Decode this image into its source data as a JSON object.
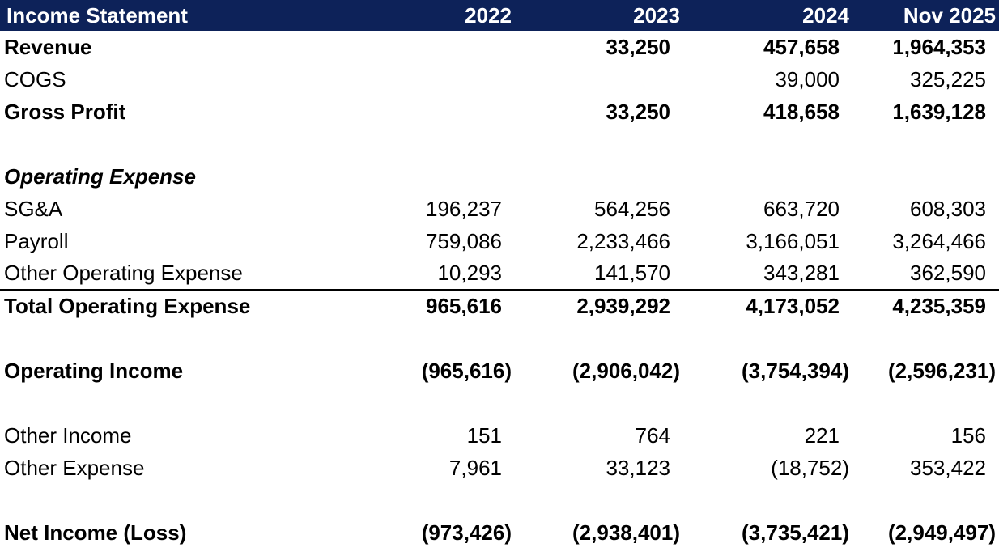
{
  "colors": {
    "header_bg": "#0d2259",
    "header_text": "#ffffff",
    "body_text": "#000000",
    "rule": "#000000"
  },
  "table": {
    "header": {
      "label": "Income Statement",
      "columns": [
        "2022",
        "2023",
        "2024",
        "Nov 2025"
      ]
    },
    "rows": [
      {
        "label": "Revenue",
        "style": "bold",
        "values": [
          "",
          "33,250",
          "457,658",
          "1,964,353"
        ]
      },
      {
        "label": "COGS",
        "style": "regular",
        "values": [
          "",
          "",
          "39,000",
          "325,225"
        ]
      },
      {
        "label": "Gross Profit",
        "style": "bold",
        "values": [
          "",
          "33,250",
          "418,658",
          "1,639,128"
        ]
      },
      {
        "label": "",
        "style": "blank",
        "values": [
          "",
          "",
          "",
          ""
        ]
      },
      {
        "label": "Operating Expense",
        "style": "bolditalic",
        "values": [
          "",
          "",
          "",
          ""
        ]
      },
      {
        "label": "SG&A",
        "style": "regular",
        "values": [
          "196,237",
          "564,256",
          "663,720",
          "608,303"
        ]
      },
      {
        "label": "Payroll",
        "style": "regular",
        "values": [
          "759,086",
          "2,233,466",
          "3,166,051",
          "3,264,466"
        ]
      },
      {
        "label": "Other Operating Expense",
        "style": "regular",
        "underline": true,
        "values": [
          "10,293",
          "141,570",
          "343,281",
          "362,590"
        ]
      },
      {
        "label": "Total Operating Expense",
        "style": "bold",
        "values": [
          "965,616",
          "2,939,292",
          "4,173,052",
          "4,235,359"
        ]
      },
      {
        "label": "",
        "style": "blank",
        "values": [
          "",
          "",
          "",
          ""
        ]
      },
      {
        "label": "Operating Income",
        "style": "bold",
        "values": [
          "(965,616)",
          "(2,906,042)",
          "(3,754,394)",
          "(2,596,231)"
        ]
      },
      {
        "label": "",
        "style": "blank",
        "values": [
          "",
          "",
          "",
          ""
        ]
      },
      {
        "label": "Other Income",
        "style": "regular",
        "values": [
          "151",
          "764",
          "221",
          "156"
        ]
      },
      {
        "label": "Other Expense",
        "style": "regular",
        "values": [
          "7,961",
          "33,123",
          "(18,752)",
          "353,422"
        ]
      },
      {
        "label": "",
        "style": "blank",
        "values": [
          "",
          "",
          "",
          ""
        ]
      },
      {
        "label": "Net Income (Loss)",
        "style": "bold",
        "values": [
          "(973,426)",
          "(2,938,401)",
          "(3,735,421)",
          "(2,949,497)"
        ]
      }
    ]
  }
}
